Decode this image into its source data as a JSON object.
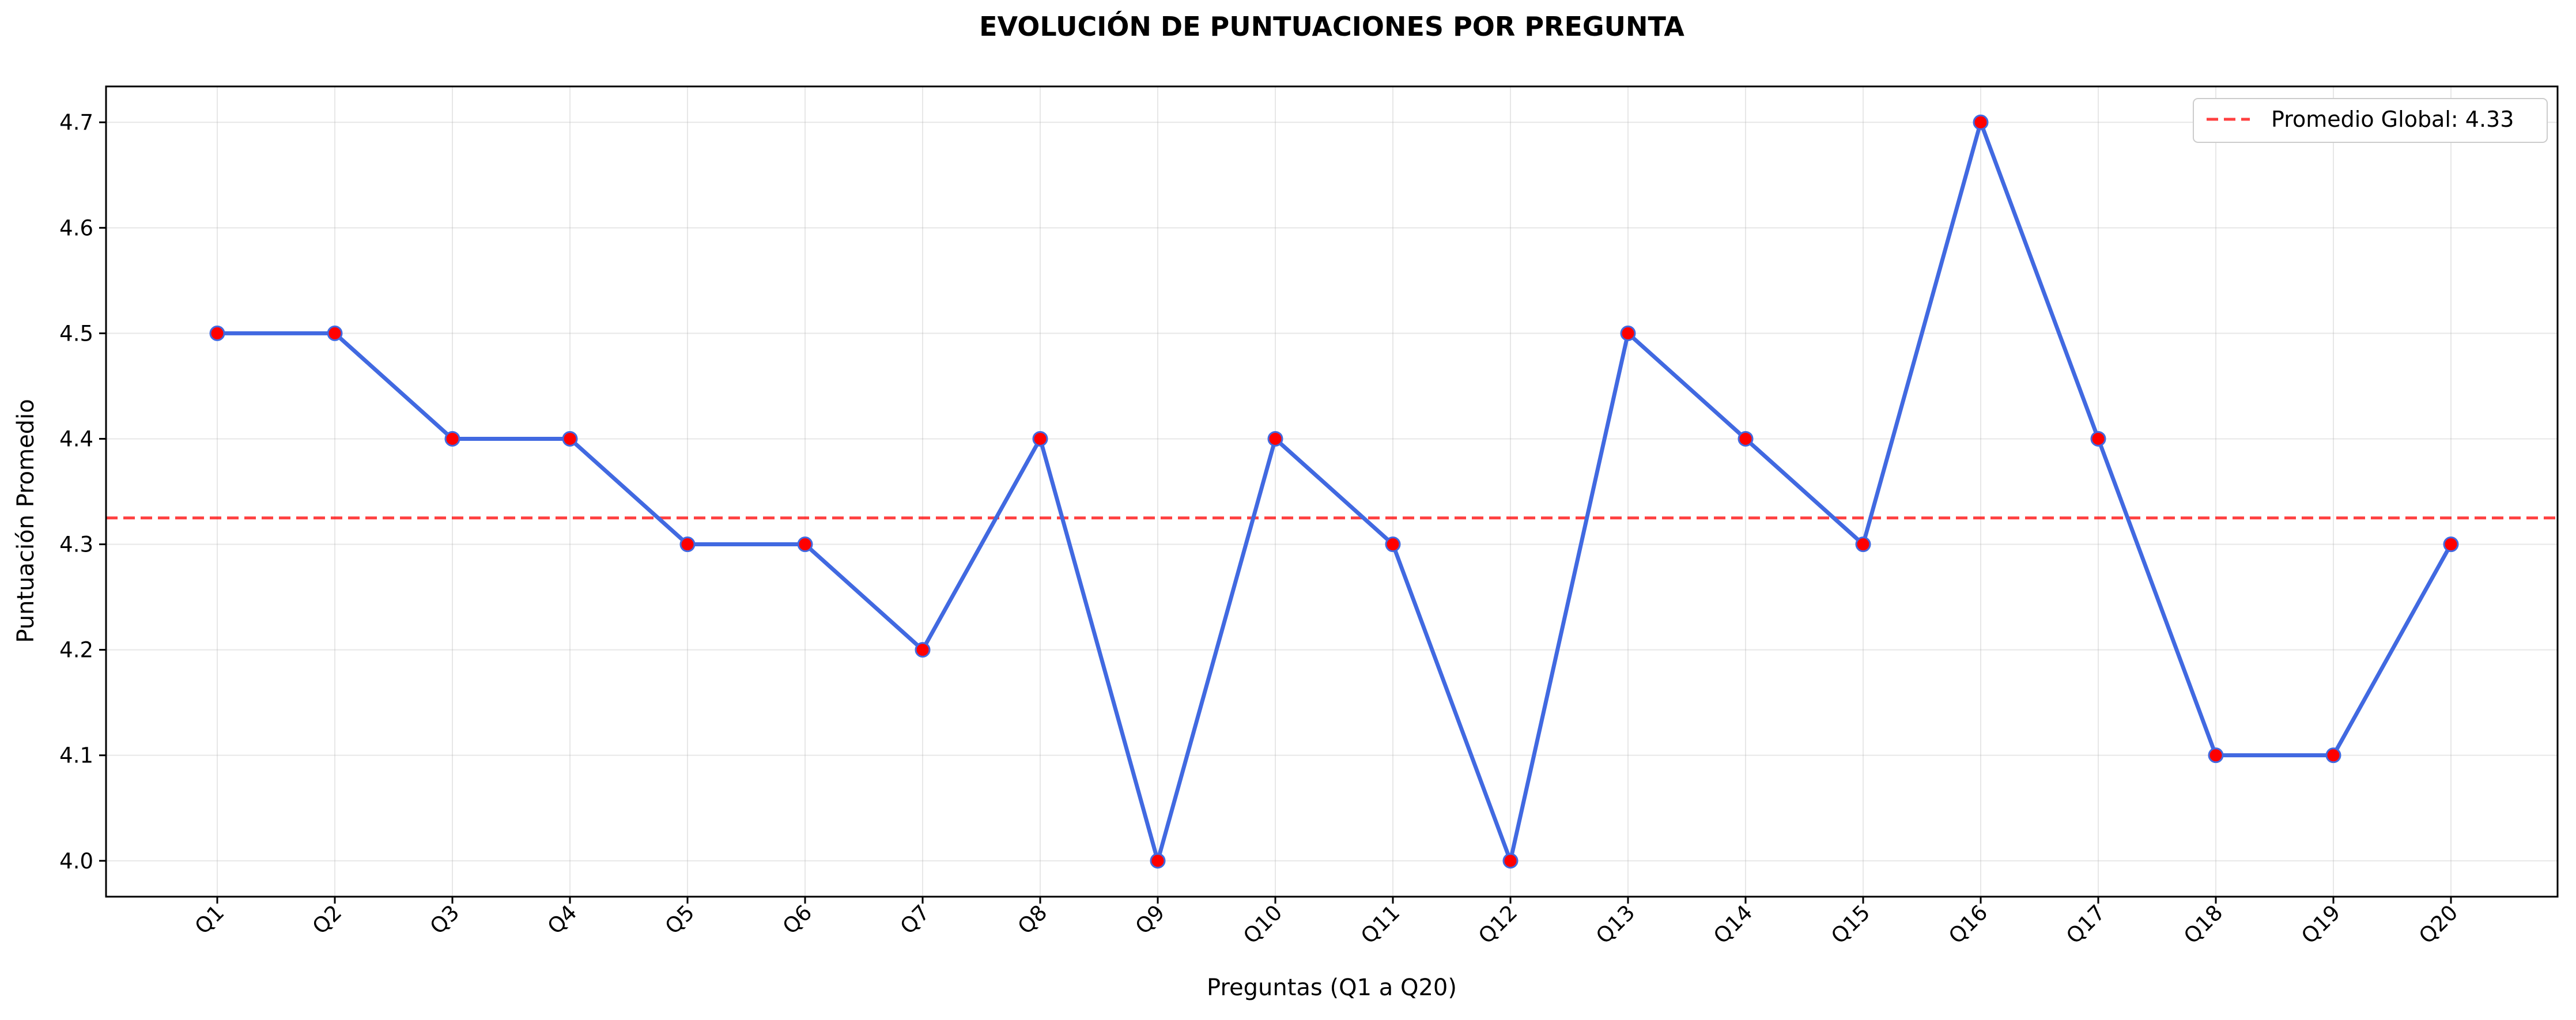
{
  "chart_data": {
    "type": "line",
    "title": "EVOLUCIÓN DE PUNTUACIONES POR PREGUNTA",
    "xlabel": "Preguntas (Q1 a Q20)",
    "ylabel": "Puntuación Promedio",
    "categories": [
      "Q1",
      "Q2",
      "Q3",
      "Q4",
      "Q5",
      "Q6",
      "Q7",
      "Q8",
      "Q9",
      "Q10",
      "Q11",
      "Q12",
      "Q13",
      "Q14",
      "Q15",
      "Q16",
      "Q17",
      "Q18",
      "Q19",
      "Q20"
    ],
    "series": [
      {
        "values": [
          4.5,
          4.5,
          4.4,
          4.4,
          4.3,
          4.3,
          4.2,
          4.4,
          4.0,
          4.4,
          4.3,
          4.0,
          4.5,
          4.4,
          4.3,
          4.7,
          4.4,
          4.1,
          4.1,
          4.3
        ],
        "color": "#4169E1",
        "marker_color": "#FF0000"
      }
    ],
    "reference_line": {
      "label": "Promedio Global: 4.33",
      "value": 4.325,
      "color": "#FF0000",
      "style": "dashed"
    },
    "yticks": [
      "4.0",
      "4.1",
      "4.2",
      "4.3",
      "4.4",
      "4.5",
      "4.6",
      "4.7"
    ],
    "ylim": [
      3.966,
      4.734
    ],
    "grid": true,
    "legend_position": "top-right",
    "x_tick_rotation_deg": 45
  }
}
